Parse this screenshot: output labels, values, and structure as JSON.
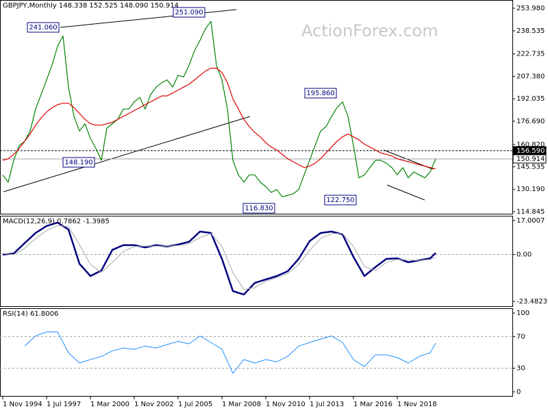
{
  "chart_data": [
    {
      "type": "line",
      "title": "GBPJPY,Monthly  148.338 152.525 148.090 150.914",
      "watermark": "ActionForex.com",
      "xlim": [
        -2,
        372
      ],
      "ylim": [
        113.44,
        259.6
      ],
      "yticks": [
        {
          "value": 253.98,
          "label": "253.980"
        },
        238.535,
        222.735,
        {
          "value": 207.38,
          "label": "207.380"
        },
        192.035,
        {
          "value": 176.69,
          "label": "176.690"
        },
        {
          "value": 160.82,
          "label": "160.820"
        },
        145.535,
        {
          "value": 130.19,
          "label": "130.190"
        },
        114.845
      ],
      "markers": [
        {
          "value": 156.59,
          "label": "156.590"
        },
        150.914
      ],
      "annotations": [
        "241.060",
        "251.090",
        "148.190",
        "116.830",
        "195.860",
        "122.750"
      ],
      "x": [
        0,
        4,
        8,
        12,
        16,
        20,
        24,
        28,
        32,
        36,
        40,
        44,
        48,
        52,
        56,
        60,
        64,
        68,
        72,
        76,
        80,
        84,
        88,
        92,
        96,
        100,
        104,
        108,
        112,
        116,
        120,
        124,
        128,
        132,
        136,
        140,
        144,
        148,
        152,
        156,
        160,
        164,
        168,
        172,
        176,
        180,
        184,
        188,
        192,
        196,
        200,
        204,
        208,
        212,
        216,
        220,
        224,
        228,
        232,
        236,
        240,
        244,
        248,
        252,
        256,
        260,
        264,
        268,
        272,
        276,
        280,
        284,
        288,
        292,
        296,
        300,
        304,
        308,
        312,
        316
      ],
      "series": [
        {
          "color": "#008000",
          "values": [
            140,
            135,
            150,
            160,
            163,
            170,
            185,
            195,
            205,
            215,
            228,
            235,
            200,
            180,
            170,
            175,
            165,
            158,
            150,
            172,
            175,
            178,
            185,
            185,
            190,
            193,
            185,
            195,
            200,
            203,
            205,
            200,
            208,
            207,
            215,
            225,
            232,
            240,
            245,
            215,
            205,
            185,
            150,
            140,
            135,
            140,
            140,
            135,
            132,
            128,
            130,
            125,
            126,
            127,
            130,
            140,
            150,
            160,
            170,
            173,
            180,
            186,
            190,
            180,
            160,
            138,
            140,
            145,
            150,
            150,
            148,
            145,
            140,
            145,
            138,
            142,
            140,
            138,
            142,
            150.914
          ]
        },
        {
          "color": "#e00000",
          "values": [
            150,
            151,
            154,
            158,
            163,
            168,
            174,
            179,
            183,
            186,
            188,
            189,
            189,
            186,
            182,
            178,
            175,
            174,
            174,
            175,
            176,
            178,
            180,
            182,
            184,
            186,
            188,
            190,
            192,
            194,
            194,
            196,
            198,
            200,
            202,
            205,
            208,
            211,
            213,
            213,
            210,
            203,
            192,
            185,
            178,
            173,
            169,
            166,
            162,
            159,
            157,
            154,
            151,
            149,
            147,
            145,
            146,
            148,
            151,
            155,
            159,
            163,
            166,
            168,
            166,
            164,
            161,
            159,
            157,
            155,
            154,
            153,
            151,
            150,
            149,
            148,
            147,
            146,
            145,
            144
          ]
        }
      ]
    },
    {
      "type": "line",
      "title": "MACD(12,26,9) 0.7862 -1.3985",
      "xlim": [
        -2,
        372
      ],
      "ylim": [
        -25.88,
        19.4
      ],
      "yticks": [
        17.0007,
        {
          "value": 0,
          "label": "0.00"
        },
        -23.4823
      ],
      "levels": [
        0
      ],
      "x": [
        0,
        8,
        16,
        24,
        32,
        40,
        48,
        56,
        64,
        72,
        80,
        88,
        96,
        104,
        112,
        120,
        128,
        136,
        144,
        152,
        160,
        168,
        176,
        184,
        192,
        200,
        208,
        216,
        224,
        232,
        240,
        248,
        256,
        264,
        272,
        280,
        288,
        296,
        304,
        312,
        316
      ],
      "series": [
        {
          "color": "#000080",
          "width": 2.5,
          "values": [
            0,
            0.5,
            5.7,
            10.8,
            14.3,
            16,
            12.5,
            -4.6,
            -10.8,
            -8,
            2.3,
            4.7,
            4.7,
            3.6,
            4.7,
            4,
            5,
            6.4,
            11.5,
            10.8,
            -2.2,
            -18.3,
            -20,
            -14.2,
            -12.5,
            -10.8,
            -8.4,
            -2.2,
            6.7,
            10.8,
            11.5,
            10.1,
            -1.2,
            -10.8,
            -6.3,
            -2.2,
            -1.9,
            -3.9,
            -2.9,
            -1.9,
            0.7862
          ]
        },
        {
          "color": "#a8a8a8",
          "width": 1,
          "values": [
            0.5,
            0,
            3,
            8,
            12,
            14.5,
            14,
            5,
            -5,
            -9,
            -4,
            1.5,
            4,
            4.2,
            4.2,
            4.2,
            4.5,
            5.5,
            8.5,
            10.5,
            4,
            -9,
            -17.5,
            -16.5,
            -13.5,
            -11.5,
            -9.5,
            -5,
            2,
            8,
            10.5,
            10.5,
            4,
            -6,
            -8,
            -4,
            -2.5,
            -2.8,
            -3,
            -2.5,
            -1.3985
          ]
        }
      ]
    },
    {
      "type": "line",
      "title": "RSI(14) 61.8006",
      "xlim": [
        -2,
        372
      ],
      "ylim": [
        -5.2,
        106.1
      ],
      "yticks": [
        100,
        70,
        30,
        0
      ],
      "levels": [
        70,
        30
      ],
      "xticks": [
        {
          "value": 0,
          "label": "1 Nov 1994"
        },
        {
          "value": 32,
          "label": "1 Jul 1997"
        },
        {
          "value": 64,
          "label": "1 Mar 2000"
        },
        {
          "value": 96,
          "label": "1 Nov 2002"
        },
        {
          "value": 128,
          "label": "1 Jul 2005"
        },
        {
          "value": 160,
          "label": "1 Mar 2008"
        },
        {
          "value": 192,
          "label": "1 Nov 2010"
        },
        {
          "value": 224,
          "label": "1 Jul 2013"
        },
        {
          "value": 256,
          "label": "1 Mar 2016"
        },
        {
          "value": 288,
          "label": "1 Nov 2018"
        }
      ],
      "x": [
        0,
        8,
        16,
        24,
        32,
        40,
        48,
        56,
        64,
        72,
        80,
        88,
        96,
        104,
        112,
        120,
        128,
        136,
        144,
        152,
        160,
        168,
        176,
        184,
        192,
        200,
        208,
        216,
        224,
        232,
        240,
        248,
        256,
        264,
        272,
        280,
        288,
        296,
        304,
        312,
        316
      ],
      "series": [
        {
          "color": "#1e90ff",
          "width": 1,
          "values": [
            null,
            null,
            58,
            71,
            76,
            76,
            49.6,
            36.5,
            41,
            45,
            52,
            55.6,
            54,
            58,
            55.6,
            60,
            64,
            60.9,
            71,
            62.6,
            54,
            23.5,
            41,
            36.5,
            41,
            38.2,
            45,
            58,
            62.6,
            67,
            71,
            62.6,
            41,
            32,
            47,
            47,
            43.5,
            36.5,
            45,
            49.6,
            61.8006
          ]
        }
      ]
    }
  ]
}
